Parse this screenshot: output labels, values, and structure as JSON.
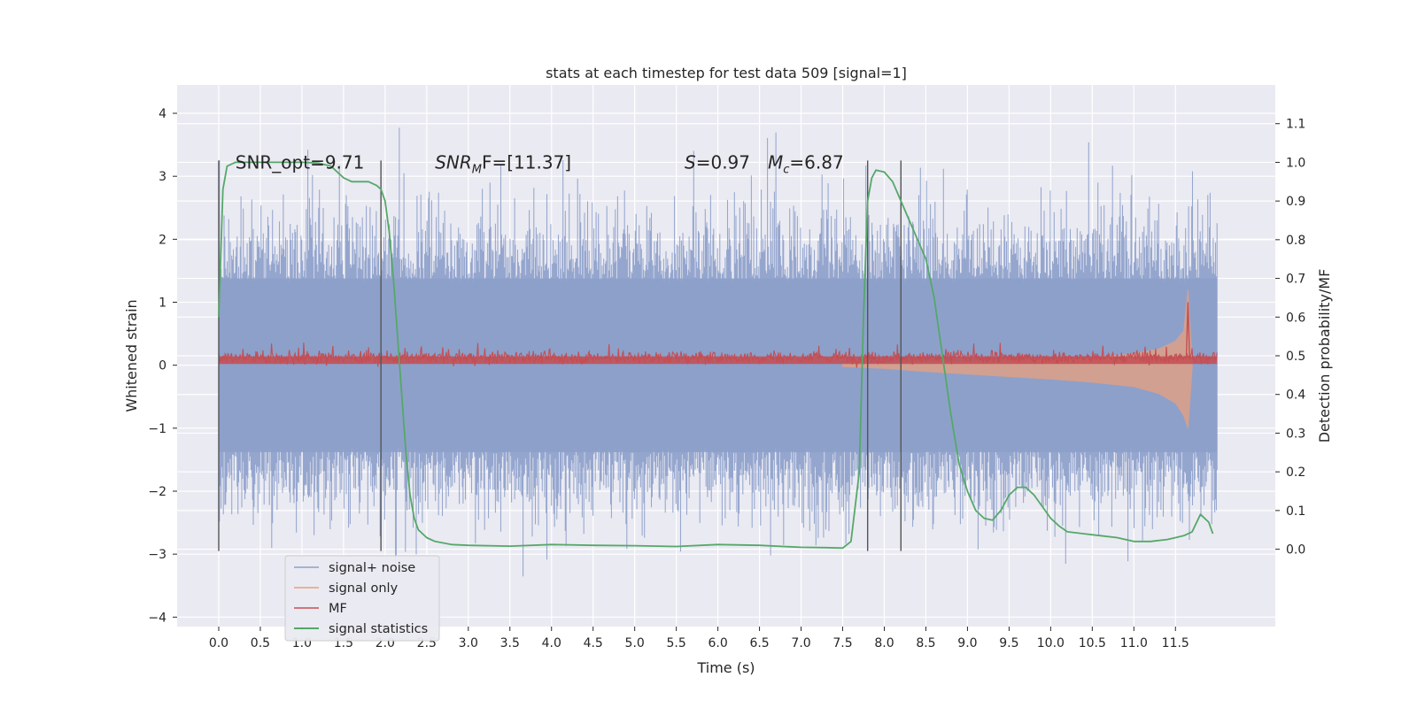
{
  "chart_data": {
    "type": "line",
    "title": "stats at each timestep for test data 509 [signal=1]",
    "xlabel": "Time (s)",
    "ylabel": "Whitened strain",
    "y2label": "Detection probability/MF",
    "xlim": [
      -0.5,
      12.7
    ],
    "ylim": [
      -4.15,
      4.45
    ],
    "y2lim": [
      -0.2,
      1.2
    ],
    "xticks": [
      0.0,
      0.5,
      1.0,
      1.5,
      2.0,
      2.5,
      3.0,
      3.5,
      4.0,
      4.5,
      5.0,
      5.5,
      6.0,
      6.5,
      7.0,
      7.5,
      8.0,
      8.5,
      9.0,
      9.5,
      10.0,
      10.5,
      11.0,
      11.5
    ],
    "xtick_labels": [
      "0.0",
      "0.5",
      "1.0",
      "1.5",
      "2.0",
      "2.5",
      "3.0",
      "3.5",
      "4.0",
      "4.5",
      "5.0",
      "5.5",
      "6.0",
      "6.5",
      "7.0",
      "7.5",
      "8.0",
      "8.5",
      "9.0",
      "9.5",
      "10.0",
      "10.5",
      "11.0",
      "11.5"
    ],
    "yticks": [
      4,
      3,
      2,
      1,
      0,
      -1,
      -2,
      -3,
      -4
    ],
    "ytick_labels": [
      "4",
      "3",
      "2",
      "1",
      "0",
      "−1",
      "−2",
      "−3",
      "−4"
    ],
    "y2ticks": [
      1.1,
      1.0,
      0.9,
      0.8,
      0.7,
      0.6,
      0.5,
      0.4,
      0.3,
      0.2,
      0.1,
      0.0
    ],
    "y2tick_labels": [
      "1.1",
      "1.0",
      "0.9",
      "0.8",
      "0.7",
      "0.6",
      "0.5",
      "0.4",
      "0.3",
      "0.2",
      "0.1",
      "0.0"
    ],
    "grid": true,
    "legend_position": "bottom-left",
    "series": [
      {
        "name": "signal+ noise",
        "color": "#8c9fca",
        "axis": "left",
        "note_range": "noise roughly between -3.0 and 3.4, mostly within ±1.4",
        "x_range": [
          0.0,
          12.0
        ]
      },
      {
        "name": "signal only",
        "color": "#e8a07e",
        "axis": "left",
        "envelope": {
          "x": [
            7.5,
            8.0,
            8.5,
            9.0,
            9.5,
            10.0,
            10.5,
            11.0,
            11.3,
            11.5,
            11.6,
            11.65,
            11.7
          ],
          "upper": [
            0.02,
            0.03,
            0.04,
            0.05,
            0.07,
            0.09,
            0.12,
            0.18,
            0.26,
            0.38,
            0.55,
            1.2,
            0.05
          ],
          "lower": [
            -0.02,
            -0.05,
            -0.1,
            -0.14,
            -0.18,
            -0.22,
            -0.27,
            -0.34,
            -0.45,
            -0.6,
            -0.8,
            -1.0,
            -0.05
          ]
        }
      },
      {
        "name": "MF",
        "color": "#c44e52",
        "axis": "left",
        "note_range": "band roughly between -0.05 and 0.35, peak 1.0 near x=11.65",
        "x_range": [
          0.0,
          12.0
        ]
      },
      {
        "name": "signal statistics",
        "color": "#55a868",
        "axis": "right",
        "x": [
          0.0,
          0.05,
          0.1,
          0.15,
          0.2,
          0.3,
          0.5,
          0.8,
          1.0,
          1.2,
          1.35,
          1.5,
          1.6,
          1.7,
          1.8,
          1.9,
          1.95,
          2.0,
          2.05,
          2.1,
          2.15,
          2.2,
          2.25,
          2.3,
          2.35,
          2.4,
          2.5,
          2.6,
          2.8,
          3.0,
          3.5,
          4.0,
          4.5,
          5.0,
          5.5,
          6.0,
          6.5,
          7.0,
          7.3,
          7.5,
          7.6,
          7.7,
          7.75,
          7.8,
          7.85,
          7.9,
          8.0,
          8.1,
          8.2,
          8.3,
          8.4,
          8.5,
          8.6,
          8.7,
          8.8,
          8.9,
          9.0,
          9.1,
          9.2,
          9.3,
          9.4,
          9.5,
          9.6,
          9.7,
          9.8,
          9.9,
          10.0,
          10.1,
          10.2,
          10.4,
          10.6,
          10.8,
          11.0,
          11.2,
          11.4,
          11.5,
          11.6,
          11.7,
          11.8,
          11.9,
          11.95
        ],
        "y": [
          0.6,
          0.93,
          0.99,
          0.995,
          1.0,
          1.0,
          1.0,
          1.0,
          1.0,
          0.998,
          0.99,
          0.96,
          0.95,
          0.95,
          0.95,
          0.94,
          0.93,
          0.9,
          0.82,
          0.7,
          0.55,
          0.4,
          0.25,
          0.14,
          0.08,
          0.05,
          0.03,
          0.02,
          0.012,
          0.01,
          0.008,
          0.012,
          0.01,
          0.009,
          0.007,
          0.012,
          0.01,
          0.005,
          0.004,
          0.003,
          0.02,
          0.2,
          0.6,
          0.9,
          0.96,
          0.98,
          0.975,
          0.95,
          0.9,
          0.85,
          0.8,
          0.75,
          0.65,
          0.5,
          0.35,
          0.22,
          0.15,
          0.1,
          0.08,
          0.075,
          0.1,
          0.14,
          0.16,
          0.16,
          0.14,
          0.11,
          0.08,
          0.06,
          0.045,
          0.04,
          0.035,
          0.03,
          0.02,
          0.02,
          0.025,
          0.03,
          0.035,
          0.045,
          0.09,
          0.07,
          0.04
        ]
      }
    ],
    "vlines": [
      0.0,
      1.95,
      7.8,
      8.2
    ],
    "annotations": [
      {
        "id": "snr_opt",
        "x": 0.2,
        "y": 3.22,
        "text": "SNR_opt=9.71"
      },
      {
        "id": "snr_mf",
        "x": 2.6,
        "y": 3.22,
        "text_main": "SNR",
        "text_sub": "M",
        "text_rest": "F=[11.37]"
      },
      {
        "id": "s",
        "x": 5.6,
        "y": 3.22,
        "text_main": "S",
        "text_rest": "=0.97"
      },
      {
        "id": "mc",
        "x": 6.6,
        "y": 3.22,
        "text_main": "M",
        "text_sub": "c",
        "text_rest": "=6.87"
      }
    ]
  }
}
